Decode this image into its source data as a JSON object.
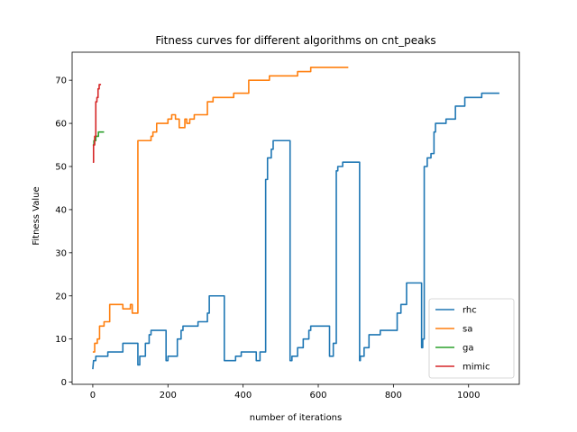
{
  "chart_data": {
    "type": "line",
    "title": "Fitness curves for different algorithms on cnt_peaks",
    "xlabel": "number of iterations",
    "ylabel": "Fitness Value",
    "xlim": [
      -55,
      1135
    ],
    "ylim": [
      -0.5,
      76.5
    ],
    "xticks": [
      0,
      200,
      400,
      600,
      800,
      1000
    ],
    "yticks": [
      0,
      10,
      20,
      30,
      40,
      50,
      60,
      70
    ],
    "grid": false,
    "legend_position": "lower-right",
    "series": [
      {
        "name": "rhc",
        "color": "#1f77b4",
        "points": [
          [
            0,
            3
          ],
          [
            2,
            5
          ],
          [
            8,
            5
          ],
          [
            8,
            6
          ],
          [
            40,
            6
          ],
          [
            40,
            7
          ],
          [
            80,
            7
          ],
          [
            80,
            9
          ],
          [
            120,
            9
          ],
          [
            120,
            4
          ],
          [
            125,
            4
          ],
          [
            125,
            6
          ],
          [
            140,
            6
          ],
          [
            140,
            9
          ],
          [
            150,
            9
          ],
          [
            150,
            11
          ],
          [
            155,
            11
          ],
          [
            155,
            12
          ],
          [
            195,
            12
          ],
          [
            195,
            5
          ],
          [
            200,
            5
          ],
          [
            200,
            6
          ],
          [
            225,
            6
          ],
          [
            225,
            10
          ],
          [
            235,
            10
          ],
          [
            235,
            12
          ],
          [
            240,
            12
          ],
          [
            240,
            13
          ],
          [
            280,
            13
          ],
          [
            280,
            14
          ],
          [
            305,
            14
          ],
          [
            305,
            16
          ],
          [
            310,
            16
          ],
          [
            310,
            20
          ],
          [
            350,
            20
          ],
          [
            350,
            5
          ],
          [
            380,
            5
          ],
          [
            380,
            6
          ],
          [
            395,
            6
          ],
          [
            395,
            7
          ],
          [
            435,
            7
          ],
          [
            435,
            5
          ],
          [
            445,
            5
          ],
          [
            445,
            7
          ],
          [
            460,
            7
          ],
          [
            460,
            47
          ],
          [
            465,
            47
          ],
          [
            465,
            52
          ],
          [
            475,
            52
          ],
          [
            475,
            54
          ],
          [
            480,
            54
          ],
          [
            480,
            56
          ],
          [
            525,
            56
          ],
          [
            525,
            5
          ],
          [
            530,
            5
          ],
          [
            530,
            6
          ],
          [
            545,
            6
          ],
          [
            545,
            8
          ],
          [
            560,
            8
          ],
          [
            560,
            10
          ],
          [
            575,
            10
          ],
          [
            575,
            12
          ],
          [
            580,
            12
          ],
          [
            580,
            13
          ],
          [
            630,
            13
          ],
          [
            630,
            6
          ],
          [
            640,
            6
          ],
          [
            640,
            9
          ],
          [
            648,
            9
          ],
          [
            648,
            49
          ],
          [
            652,
            49
          ],
          [
            652,
            50
          ],
          [
            665,
            50
          ],
          [
            665,
            51
          ],
          [
            710,
            51
          ],
          [
            710,
            5
          ],
          [
            712,
            5
          ],
          [
            712,
            6
          ],
          [
            722,
            6
          ],
          [
            722,
            8
          ],
          [
            735,
            8
          ],
          [
            735,
            11
          ],
          [
            765,
            11
          ],
          [
            765,
            12
          ],
          [
            810,
            12
          ],
          [
            810,
            16
          ],
          [
            820,
            16
          ],
          [
            820,
            18
          ],
          [
            835,
            18
          ],
          [
            835,
            23
          ],
          [
            875,
            23
          ],
          [
            875,
            8
          ],
          [
            878,
            8
          ],
          [
            878,
            10
          ],
          [
            882,
            10
          ],
          [
            882,
            50
          ],
          [
            890,
            50
          ],
          [
            890,
            52
          ],
          [
            900,
            52
          ],
          [
            900,
            53
          ],
          [
            908,
            53
          ],
          [
            908,
            58
          ],
          [
            912,
            58
          ],
          [
            912,
            60
          ],
          [
            940,
            60
          ],
          [
            940,
            61
          ],
          [
            965,
            61
          ],
          [
            965,
            64
          ],
          [
            990,
            64
          ],
          [
            990,
            66
          ],
          [
            1035,
            66
          ],
          [
            1035,
            67
          ],
          [
            1082,
            67
          ]
        ]
      },
      {
        "name": "sa",
        "color": "#ff7f0e",
        "points": [
          [
            0,
            7
          ],
          [
            5,
            7
          ],
          [
            5,
            9
          ],
          [
            12,
            9
          ],
          [
            12,
            10
          ],
          [
            18,
            10
          ],
          [
            18,
            13
          ],
          [
            30,
            13
          ],
          [
            30,
            14
          ],
          [
            45,
            14
          ],
          [
            45,
            18
          ],
          [
            80,
            18
          ],
          [
            80,
            17
          ],
          [
            100,
            17
          ],
          [
            100,
            18
          ],
          [
            105,
            18
          ],
          [
            105,
            16
          ],
          [
            120,
            16
          ],
          [
            120,
            56
          ],
          [
            155,
            56
          ],
          [
            155,
            57
          ],
          [
            160,
            57
          ],
          [
            160,
            58
          ],
          [
            170,
            58
          ],
          [
            170,
            60
          ],
          [
            200,
            60
          ],
          [
            200,
            61
          ],
          [
            210,
            61
          ],
          [
            210,
            62
          ],
          [
            220,
            62
          ],
          [
            220,
            61
          ],
          [
            230,
            61
          ],
          [
            230,
            59
          ],
          [
            245,
            59
          ],
          [
            245,
            61
          ],
          [
            250,
            61
          ],
          [
            250,
            60
          ],
          [
            258,
            60
          ],
          [
            258,
            61
          ],
          [
            270,
            61
          ],
          [
            270,
            62
          ],
          [
            305,
            62
          ],
          [
            305,
            65
          ],
          [
            320,
            65
          ],
          [
            320,
            66
          ],
          [
            375,
            66
          ],
          [
            375,
            67
          ],
          [
            415,
            67
          ],
          [
            415,
            70
          ],
          [
            470,
            70
          ],
          [
            470,
            71
          ],
          [
            545,
            71
          ],
          [
            545,
            72
          ],
          [
            580,
            72
          ],
          [
            580,
            73
          ],
          [
            680,
            73
          ]
        ]
      },
      {
        "name": "ga",
        "color": "#2ca02c",
        "points": [
          [
            0,
            55
          ],
          [
            3,
            55
          ],
          [
            3,
            56
          ],
          [
            8,
            56
          ],
          [
            8,
            57
          ],
          [
            15,
            57
          ],
          [
            15,
            58
          ],
          [
            30,
            58
          ]
        ]
      },
      {
        "name": "mimic",
        "color": "#d62728",
        "points": [
          [
            0,
            51
          ],
          [
            2,
            51
          ],
          [
            2,
            55
          ],
          [
            5,
            55
          ],
          [
            5,
            57
          ],
          [
            8,
            57
          ],
          [
            8,
            65
          ],
          [
            11,
            65
          ],
          [
            11,
            66
          ],
          [
            14,
            66
          ],
          [
            14,
            68
          ],
          [
            17,
            68
          ],
          [
            17,
            69
          ],
          [
            22,
            69
          ]
        ]
      }
    ]
  }
}
